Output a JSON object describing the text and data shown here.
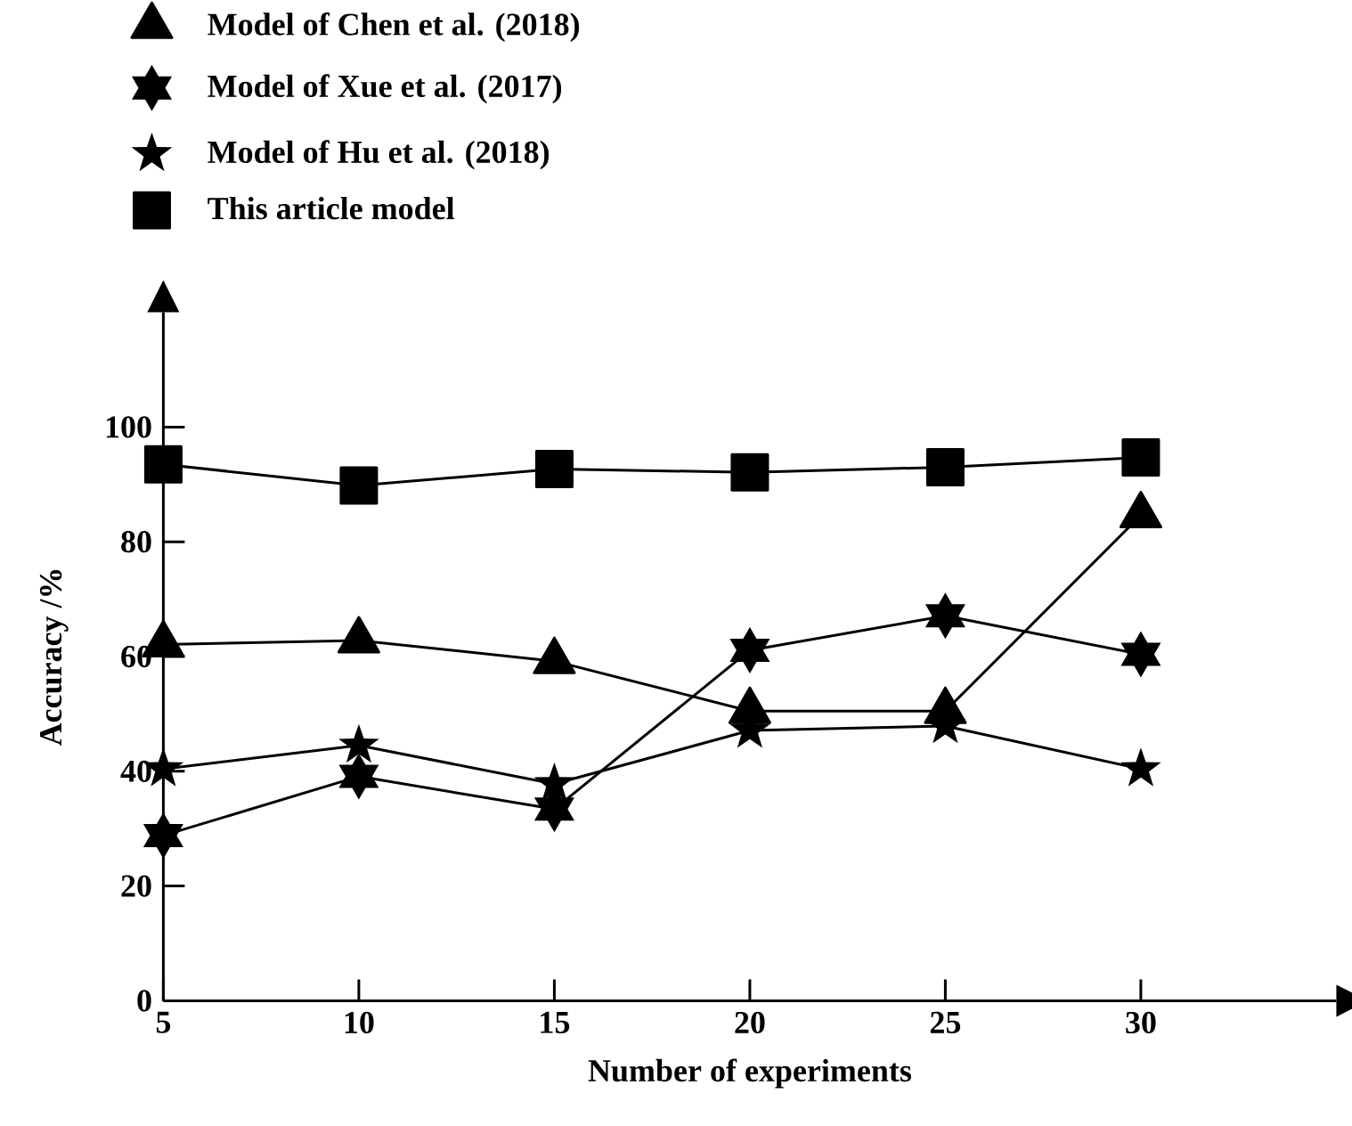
{
  "chart_data": {
    "type": "line",
    "xlabel": "Number of experiments",
    "ylabel": "Accuracy /%",
    "x": [
      5,
      10,
      15,
      20,
      25,
      30
    ],
    "series": [
      {
        "name": "Model of Chen et al. (2018)",
        "color": "#000000",
        "marker": "triangle",
        "values": [
          62.1,
          62.8,
          59.2,
          50.5,
          50.5,
          84.6
        ]
      },
      {
        "name": "Model of Xue et al. (2017)",
        "color": "#000000",
        "marker": "cross",
        "values": [
          28.8,
          39.1,
          33.4,
          61.1,
          67.1,
          60.4
        ]
      },
      {
        "name": "Model of Hu et al. (2018)",
        "color": "#000000",
        "marker": "star",
        "values": [
          40.4,
          44.5,
          37.8,
          47.1,
          47.9,
          40.4
        ]
      },
      {
        "name": "This article model",
        "color": "#000000",
        "marker": "square",
        "values": [
          93.5,
          89.8,
          92.7,
          92.1,
          93.0,
          94.7
        ]
      }
    ],
    "xlim": [
      5,
      35
    ],
    "ylim": [
      0,
      120
    ],
    "xticks": [
      5,
      10,
      15,
      20,
      25,
      30
    ],
    "yticks": [
      0,
      20,
      40,
      60,
      80,
      100
    ],
    "grid": false,
    "legend": "top left",
    "line_style": "solid"
  }
}
